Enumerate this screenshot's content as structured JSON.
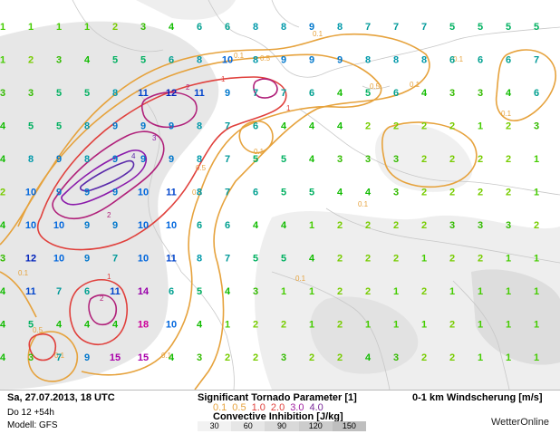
{
  "footer": {
    "datetime": "Sa, 27.07.2013, 18 UTC",
    "run": "Do 12 +54h",
    "model": "Modell: GFS",
    "stp_title": "Significant Tornado Parameter [1]",
    "stp_levels": [
      "0.1",
      "0.5",
      "1.0",
      "2.0",
      "3.0",
      "4.0"
    ],
    "stp_colors": [
      "#e6a23c",
      "#e6a23c",
      "#e0403c",
      "#e0403c",
      "#a020a0",
      "#7a2a9a"
    ],
    "cin_title": "Convective Inhibition [J/kg]",
    "cin_levels": [
      "30",
      "60",
      "90",
      "120",
      "150"
    ],
    "cin_colors": [
      "#f2f2f2",
      "#e6e6e6",
      "#d9d9d9",
      "#cccccc",
      "#bfbfbf"
    ],
    "shear_title": "0-1 km Windscherung [m/s]",
    "brand": "WetterOnline"
  },
  "shear_color_scale": {
    "1": "#44cc00",
    "2": "#77cc00",
    "3": "#33bb00",
    "4": "#11bb00",
    "5": "#00b060",
    "6": "#00a090",
    "7": "#009999",
    "8": "#0099aa",
    "9": "#0077cc",
    "10": "#0066dd",
    "11": "#0044cc",
    "12": "#0022bb",
    "14": "#9900aa",
    "15": "#aa00aa",
    "18": "#cc0099"
  },
  "grid": {
    "rows": [
      [
        "1",
        "1",
        "1",
        "1",
        "2",
        "3",
        "4",
        "6",
        "6",
        "8",
        "8",
        "9",
        "8",
        "7",
        "7",
        "7",
        "5",
        "5",
        "5",
        "5"
      ],
      [
        "1",
        "2",
        "3",
        "4",
        "5",
        "5",
        "6",
        "8",
        "10",
        "8",
        "9",
        "9",
        "9",
        "8",
        "8",
        "8",
        "6",
        "6",
        "6",
        "7"
      ],
      [
        "3",
        "3",
        "5",
        "5",
        "8",
        "11",
        "12",
        "11",
        "9",
        "7",
        "7",
        "6",
        "4",
        "5",
        "6",
        "4",
        "3",
        "3",
        "4",
        "6"
      ],
      [
        "4",
        "5",
        "5",
        "8",
        "9",
        "9",
        "9",
        "8",
        "7",
        "6",
        "4",
        "4",
        "4",
        "2",
        "2",
        "2",
        "2",
        "1",
        "2",
        "3"
      ],
      [
        "4",
        "8",
        "9",
        "8",
        "9",
        "9",
        "9",
        "8",
        "7",
        "5",
        "5",
        "4",
        "3",
        "3",
        "3",
        "2",
        "2",
        "2",
        "2",
        "1"
      ],
      [
        "2",
        "10",
        "9",
        "9",
        "9",
        "10",
        "11",
        "8",
        "7",
        "6",
        "5",
        "5",
        "4",
        "4",
        "3",
        "2",
        "2",
        "2",
        "2",
        "1"
      ],
      [
        "4",
        "10",
        "10",
        "9",
        "9",
        "10",
        "10",
        "6",
        "6",
        "4",
        "4",
        "1",
        "2",
        "2",
        "2",
        "2",
        "3",
        "3",
        "3",
        "2"
      ],
      [
        "3",
        "12",
        "10",
        "9",
        "7",
        "10",
        "11",
        "8",
        "7",
        "5",
        "5",
        "4",
        "2",
        "2",
        "2",
        "1",
        "2",
        "2",
        "1",
        "1"
      ],
      [
        "4",
        "11",
        "7",
        "6",
        "11",
        "14",
        "6",
        "5",
        "4",
        "3",
        "1",
        "1",
        "2",
        "2",
        "1",
        "2",
        "1",
        "1",
        "1",
        "1"
      ],
      [
        "4",
        "5",
        "4",
        "4",
        "4",
        "18",
        "10",
        "4",
        "1",
        "2",
        "2",
        "1",
        "2",
        "1",
        "1",
        "1",
        "2",
        "1",
        "1",
        "1"
      ],
      [
        "4",
        "3",
        "7",
        "9",
        "15",
        "15",
        "4",
        "3",
        "2",
        "2",
        "3",
        "2",
        "2",
        "4",
        "3",
        "2",
        "2",
        "1",
        "1",
        "1"
      ]
    ]
  }
}
